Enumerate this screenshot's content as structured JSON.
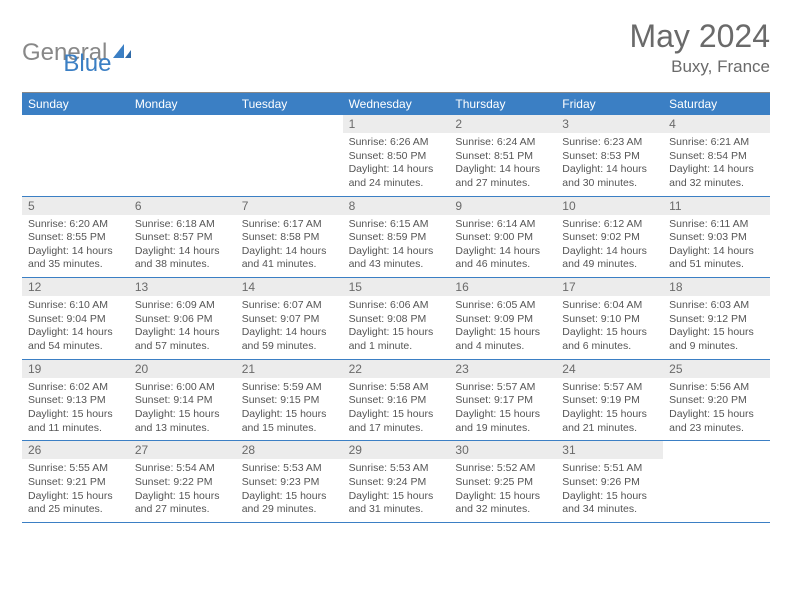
{
  "logo": {
    "gray": "General",
    "blue": "Blue"
  },
  "title": "May 2024",
  "location": "Buxy, France",
  "colors": {
    "header_bg": "#3b7fc4",
    "header_text": "#ffffff",
    "daynum_bg": "#ececec",
    "text": "#555555",
    "border": "#3b7fc4"
  },
  "day_names": [
    "Sunday",
    "Monday",
    "Tuesday",
    "Wednesday",
    "Thursday",
    "Friday",
    "Saturday"
  ],
  "weeks": [
    [
      null,
      null,
      null,
      {
        "n": "1",
        "sr": "Sunrise: 6:26 AM",
        "ss": "Sunset: 8:50 PM",
        "dl1": "Daylight: 14 hours",
        "dl2": "and 24 minutes."
      },
      {
        "n": "2",
        "sr": "Sunrise: 6:24 AM",
        "ss": "Sunset: 8:51 PM",
        "dl1": "Daylight: 14 hours",
        "dl2": "and 27 minutes."
      },
      {
        "n": "3",
        "sr": "Sunrise: 6:23 AM",
        "ss": "Sunset: 8:53 PM",
        "dl1": "Daylight: 14 hours",
        "dl2": "and 30 minutes."
      },
      {
        "n": "4",
        "sr": "Sunrise: 6:21 AM",
        "ss": "Sunset: 8:54 PM",
        "dl1": "Daylight: 14 hours",
        "dl2": "and 32 minutes."
      }
    ],
    [
      {
        "n": "5",
        "sr": "Sunrise: 6:20 AM",
        "ss": "Sunset: 8:55 PM",
        "dl1": "Daylight: 14 hours",
        "dl2": "and 35 minutes."
      },
      {
        "n": "6",
        "sr": "Sunrise: 6:18 AM",
        "ss": "Sunset: 8:57 PM",
        "dl1": "Daylight: 14 hours",
        "dl2": "and 38 minutes."
      },
      {
        "n": "7",
        "sr": "Sunrise: 6:17 AM",
        "ss": "Sunset: 8:58 PM",
        "dl1": "Daylight: 14 hours",
        "dl2": "and 41 minutes."
      },
      {
        "n": "8",
        "sr": "Sunrise: 6:15 AM",
        "ss": "Sunset: 8:59 PM",
        "dl1": "Daylight: 14 hours",
        "dl2": "and 43 minutes."
      },
      {
        "n": "9",
        "sr": "Sunrise: 6:14 AM",
        "ss": "Sunset: 9:00 PM",
        "dl1": "Daylight: 14 hours",
        "dl2": "and 46 minutes."
      },
      {
        "n": "10",
        "sr": "Sunrise: 6:12 AM",
        "ss": "Sunset: 9:02 PM",
        "dl1": "Daylight: 14 hours",
        "dl2": "and 49 minutes."
      },
      {
        "n": "11",
        "sr": "Sunrise: 6:11 AM",
        "ss": "Sunset: 9:03 PM",
        "dl1": "Daylight: 14 hours",
        "dl2": "and 51 minutes."
      }
    ],
    [
      {
        "n": "12",
        "sr": "Sunrise: 6:10 AM",
        "ss": "Sunset: 9:04 PM",
        "dl1": "Daylight: 14 hours",
        "dl2": "and 54 minutes."
      },
      {
        "n": "13",
        "sr": "Sunrise: 6:09 AM",
        "ss": "Sunset: 9:06 PM",
        "dl1": "Daylight: 14 hours",
        "dl2": "and 57 minutes."
      },
      {
        "n": "14",
        "sr": "Sunrise: 6:07 AM",
        "ss": "Sunset: 9:07 PM",
        "dl1": "Daylight: 14 hours",
        "dl2": "and 59 minutes."
      },
      {
        "n": "15",
        "sr": "Sunrise: 6:06 AM",
        "ss": "Sunset: 9:08 PM",
        "dl1": "Daylight: 15 hours",
        "dl2": "and 1 minute."
      },
      {
        "n": "16",
        "sr": "Sunrise: 6:05 AM",
        "ss": "Sunset: 9:09 PM",
        "dl1": "Daylight: 15 hours",
        "dl2": "and 4 minutes."
      },
      {
        "n": "17",
        "sr": "Sunrise: 6:04 AM",
        "ss": "Sunset: 9:10 PM",
        "dl1": "Daylight: 15 hours",
        "dl2": "and 6 minutes."
      },
      {
        "n": "18",
        "sr": "Sunrise: 6:03 AM",
        "ss": "Sunset: 9:12 PM",
        "dl1": "Daylight: 15 hours",
        "dl2": "and 9 minutes."
      }
    ],
    [
      {
        "n": "19",
        "sr": "Sunrise: 6:02 AM",
        "ss": "Sunset: 9:13 PM",
        "dl1": "Daylight: 15 hours",
        "dl2": "and 11 minutes."
      },
      {
        "n": "20",
        "sr": "Sunrise: 6:00 AM",
        "ss": "Sunset: 9:14 PM",
        "dl1": "Daylight: 15 hours",
        "dl2": "and 13 minutes."
      },
      {
        "n": "21",
        "sr": "Sunrise: 5:59 AM",
        "ss": "Sunset: 9:15 PM",
        "dl1": "Daylight: 15 hours",
        "dl2": "and 15 minutes."
      },
      {
        "n": "22",
        "sr": "Sunrise: 5:58 AM",
        "ss": "Sunset: 9:16 PM",
        "dl1": "Daylight: 15 hours",
        "dl2": "and 17 minutes."
      },
      {
        "n": "23",
        "sr": "Sunrise: 5:57 AM",
        "ss": "Sunset: 9:17 PM",
        "dl1": "Daylight: 15 hours",
        "dl2": "and 19 minutes."
      },
      {
        "n": "24",
        "sr": "Sunrise: 5:57 AM",
        "ss": "Sunset: 9:19 PM",
        "dl1": "Daylight: 15 hours",
        "dl2": "and 21 minutes."
      },
      {
        "n": "25",
        "sr": "Sunrise: 5:56 AM",
        "ss": "Sunset: 9:20 PM",
        "dl1": "Daylight: 15 hours",
        "dl2": "and 23 minutes."
      }
    ],
    [
      {
        "n": "26",
        "sr": "Sunrise: 5:55 AM",
        "ss": "Sunset: 9:21 PM",
        "dl1": "Daylight: 15 hours",
        "dl2": "and 25 minutes."
      },
      {
        "n": "27",
        "sr": "Sunrise: 5:54 AM",
        "ss": "Sunset: 9:22 PM",
        "dl1": "Daylight: 15 hours",
        "dl2": "and 27 minutes."
      },
      {
        "n": "28",
        "sr": "Sunrise: 5:53 AM",
        "ss": "Sunset: 9:23 PM",
        "dl1": "Daylight: 15 hours",
        "dl2": "and 29 minutes."
      },
      {
        "n": "29",
        "sr": "Sunrise: 5:53 AM",
        "ss": "Sunset: 9:24 PM",
        "dl1": "Daylight: 15 hours",
        "dl2": "and 31 minutes."
      },
      {
        "n": "30",
        "sr": "Sunrise: 5:52 AM",
        "ss": "Sunset: 9:25 PM",
        "dl1": "Daylight: 15 hours",
        "dl2": "and 32 minutes."
      },
      {
        "n": "31",
        "sr": "Sunrise: 5:51 AM",
        "ss": "Sunset: 9:26 PM",
        "dl1": "Daylight: 15 hours",
        "dl2": "and 34 minutes."
      },
      null
    ]
  ]
}
